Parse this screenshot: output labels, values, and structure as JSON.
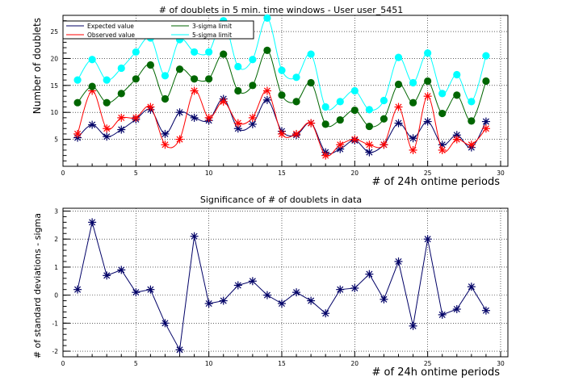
{
  "chart_data": [
    {
      "type": "line",
      "title": "# of doublets in 5 min. time windows - User user_5451",
      "xlabel": "# of 24h ontime periods",
      "ylabel": "Number of doublets",
      "xlim": [
        0,
        30.5
      ],
      "ylim": [
        0,
        28
      ],
      "xticks": [
        0,
        5,
        10,
        15,
        20,
        25,
        30
      ],
      "yticks": [
        5,
        10,
        15,
        20,
        25
      ],
      "grid": true,
      "legend_position": "top-left",
      "series": [
        {
          "name": "Expected value",
          "color": "#000066",
          "marker": "star",
          "x": [
            1,
            2,
            3,
            4,
            5,
            6,
            7,
            8,
            9,
            10,
            11,
            12,
            13,
            14,
            15,
            16,
            17,
            18,
            19,
            20,
            21,
            22,
            23,
            24,
            25,
            26,
            27,
            28,
            29
          ],
          "y": [
            5.3,
            7.7,
            5.5,
            6.8,
            8.7,
            10.5,
            6.0,
            10.0,
            9.0,
            8.5,
            12.5,
            7.0,
            7.8,
            12.3,
            6.5,
            5.8,
            8.0,
            2.6,
            3.2,
            4.8,
            2.6,
            4.0,
            8.0,
            5.2,
            8.3,
            4.0,
            5.8,
            3.5,
            8.3
          ]
        },
        {
          "name": "Observed value",
          "color": "#ff0000",
          "marker": "star",
          "x": [
            1,
            2,
            3,
            4,
            5,
            6,
            7,
            8,
            9,
            10,
            11,
            12,
            13,
            14,
            15,
            16,
            17,
            18,
            19,
            20,
            21,
            22,
            23,
            24,
            25,
            26,
            27,
            28,
            29
          ],
          "y": [
            6.0,
            14.0,
            7.0,
            9.0,
            9.0,
            11.0,
            4.0,
            5.0,
            14.0,
            9.0,
            12.0,
            8.0,
            9.0,
            14.0,
            6.0,
            6.0,
            8.0,
            2.0,
            4.0,
            5.0,
            4.0,
            4.0,
            11.0,
            3.0,
            13.0,
            3.0,
            5.0,
            4.0,
            7.0
          ]
        },
        {
          "name": "3-sigma limit",
          "color": "#006600",
          "marker": "circle",
          "x": [
            1,
            2,
            3,
            4,
            5,
            6,
            7,
            8,
            9,
            10,
            11,
            12,
            13,
            14,
            15,
            16,
            17,
            18,
            19,
            20,
            21,
            22,
            23,
            24,
            25,
            26,
            27,
            28,
            29
          ],
          "y": [
            11.8,
            14.8,
            11.8,
            13.5,
            16.2,
            18.8,
            12.5,
            18.0,
            16.2,
            16.2,
            20.8,
            14.0,
            15.0,
            21.5,
            13.2,
            12.0,
            15.5,
            7.8,
            8.6,
            10.4,
            7.4,
            8.8,
            15.2,
            11.8,
            15.8,
            9.8,
            13.2,
            8.4,
            15.8
          ]
        },
        {
          "name": "5-sigma limit",
          "color": "#00ffff",
          "marker": "circle",
          "x": [
            1,
            2,
            3,
            4,
            5,
            6,
            7,
            8,
            9,
            10,
            11,
            12,
            13,
            14,
            15,
            16,
            17,
            18,
            19,
            20,
            21,
            22,
            23,
            24,
            25,
            26,
            27,
            28,
            29
          ],
          "y": [
            16.0,
            19.8,
            16.0,
            18.2,
            21.2,
            23.8,
            16.8,
            23.5,
            21.2,
            21.2,
            27.0,
            18.5,
            19.8,
            27.5,
            17.8,
            16.5,
            20.8,
            11.0,
            12.0,
            14.0,
            10.5,
            12.2,
            20.2,
            15.5,
            21.0,
            13.5,
            17.0,
            12.0,
            20.5
          ]
        }
      ]
    },
    {
      "type": "line",
      "title": "Significance of # of doublets in data",
      "xlabel": "# of 24h ontime periods",
      "ylabel": "# of standard deviations - sigma",
      "xlim": [
        0,
        30.5
      ],
      "ylim": [
        -2.2,
        3.1
      ],
      "xticks": [
        0,
        5,
        10,
        15,
        20,
        25,
        30
      ],
      "yticks": [
        -2,
        -1,
        0,
        1,
        2,
        3
      ],
      "grid": true,
      "series": [
        {
          "color": "#000066",
          "marker": "star",
          "x": [
            1,
            2,
            3,
            4,
            5,
            6,
            7,
            8,
            9,
            10,
            11,
            12,
            13,
            14,
            15,
            16,
            17,
            18,
            19,
            20,
            21,
            22,
            23,
            24,
            25,
            26,
            27,
            28,
            29
          ],
          "y": [
            0.2,
            2.6,
            0.7,
            0.9,
            0.1,
            0.2,
            -1.0,
            -1.95,
            2.1,
            -0.3,
            -0.2,
            0.35,
            0.5,
            0.0,
            -0.3,
            0.1,
            -0.2,
            -0.65,
            0.2,
            0.25,
            0.75,
            -0.15,
            1.2,
            -1.1,
            2.0,
            -0.7,
            -0.5,
            0.3,
            -0.55
          ]
        }
      ]
    }
  ]
}
